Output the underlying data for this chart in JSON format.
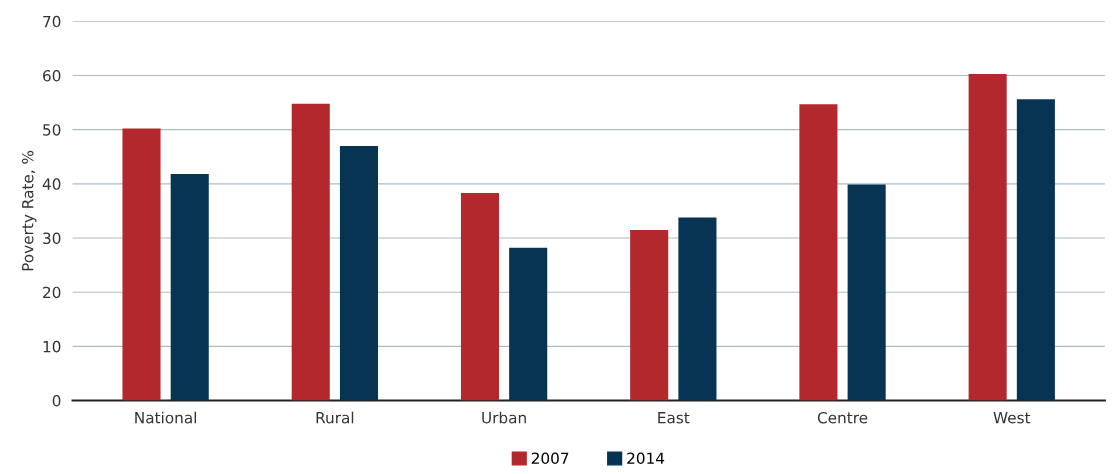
{
  "chart_data": {
    "type": "bar",
    "ylabel": "Poverty Rate, %",
    "categories": [
      "National",
      "Rural",
      "Urban",
      "East",
      "Centre",
      "West"
    ],
    "series": [
      {
        "name": "2007",
        "color": "#b3282d",
        "values": [
          50.2,
          54.8,
          38.3,
          31.5,
          54.7,
          60.3
        ]
      },
      {
        "name": "2014",
        "color": "#063452",
        "values": [
          41.8,
          47.0,
          28.2,
          33.8,
          39.9,
          55.6
        ]
      }
    ],
    "ylim": [
      0,
      70
    ],
    "yticks": [
      0,
      10,
      20,
      30,
      40,
      50,
      60,
      70
    ],
    "grid": "y",
    "legend": "bottom"
  }
}
